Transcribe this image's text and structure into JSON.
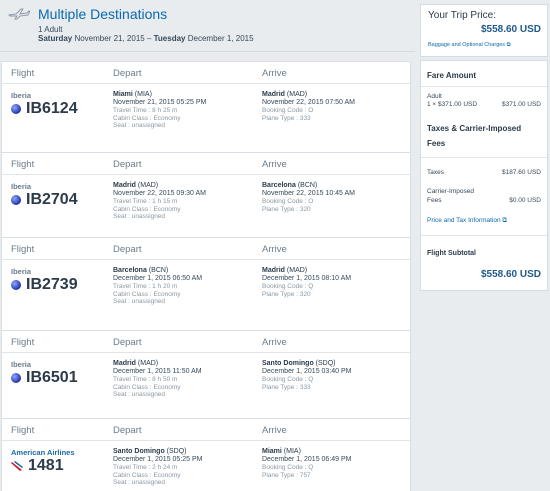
{
  "header": {
    "title": "Multiple Destinations",
    "adults": "1 Adult",
    "dates_start": "Saturday",
    "dates_mid": " November 21, 2015 – ",
    "dates_end": "Tuesday",
    "dates_tail": " December 1, 2015"
  },
  "columns": {
    "flight": "Flight",
    "depart": "Depart",
    "arrive": "Arrive"
  },
  "flights": [
    {
      "airline": "Iberia",
      "number": "IB6124",
      "logo": "iberia-globe-icon",
      "dep_city": "Miami",
      "dep_code": "(MIA)",
      "dep_time": "November 21, 2015 05:25 PM",
      "travel_time": "Travel Time : 8 h 25 m",
      "cabin": "Cabin Class : Economy",
      "seat": "Seat : unassigned",
      "arr_city": "Madrid",
      "arr_code": "(MAD)",
      "arr_time": "November 22, 2015 07:50 AM",
      "booking": "Booking Code : O",
      "plane": "Plane Type : 333"
    },
    {
      "airline": "Iberia",
      "number": "IB2704",
      "logo": "iberia-globe-icon",
      "dep_city": "Madrid",
      "dep_code": "(MAD)",
      "dep_time": "November 22, 2015 09:30 AM",
      "travel_time": "Travel Time : 1 h 15 m",
      "cabin": "Cabin Class : Economy",
      "seat": "Seat : unassigned",
      "arr_city": "Barcelona",
      "arr_code": "(BCN)",
      "arr_time": "November 22, 2015 10:45 AM",
      "booking": "Booking Code : O",
      "plane": "Plane Type : 320"
    },
    {
      "airline": "Iberia",
      "number": "IB2739",
      "logo": "iberia-globe-icon",
      "dep_city": "Barcelona",
      "dep_code": "(BCN)",
      "dep_time": "December 1, 2015 06:50 AM",
      "travel_time": "Travel Time : 1 h 20 m",
      "cabin": "Cabin Class : Economy",
      "seat": "Seat : unassigned",
      "arr_city": "Madrid",
      "arr_code": "(MAD)",
      "arr_time": "December 1, 2015 08:10 AM",
      "booking": "Booking Code : Q",
      "plane": "Plane Type : 320"
    },
    {
      "airline": "Iberia",
      "number": "IB6501",
      "logo": "iberia-globe-icon",
      "dep_city": "Madrid",
      "dep_code": "(MAD)",
      "dep_time": "December 1, 2015 11:50 AM",
      "travel_time": "Travel Time : 8 h 50 m",
      "cabin": "Cabin Class : Economy",
      "seat": "Seat : unassigned",
      "arr_city": "Santo Domingo",
      "arr_code": "(SDQ)",
      "arr_time": "December 1, 2015 03:40 PM",
      "booking": "Booking Code : Q",
      "plane": "Plane Type : 333"
    },
    {
      "airline": "American Airlines",
      "number": "1481",
      "logo": "american-airlines-icon",
      "dep_city": "Santo Domingo",
      "dep_code": "(SDQ)",
      "dep_time": "December 1, 2015 05:25 PM",
      "travel_time": "Travel Time : 2 h 24 m",
      "cabin": "Cabin Class : Economy",
      "seat": "Seat : unassigned",
      "arr_city": "Miami",
      "arr_code": "(MIA)",
      "arr_time": "December 1, 2015 06:49 PM",
      "booking": "Booking Code : Q",
      "plane": "Plane Type : 757"
    }
  ],
  "price": {
    "label": "Your Trip Price:",
    "amount": "$558.60 USD",
    "baggage_link": "Baggage and Optional Charges"
  },
  "fare": {
    "title": "Fare Amount",
    "adult_label": "Adult",
    "adult_calc": "1 × $371.00 USD",
    "adult_total": "$371.00 USD",
    "taxes_title_1": "Taxes & Carrier-Imposed",
    "taxes_title_2": "Fees",
    "taxes_label": "Taxes",
    "taxes_value": "$187.60 USD",
    "carrier_label_1": "Carrier-Imposed",
    "carrier_label_2": "Fees",
    "carrier_value": "$0.00 USD",
    "tax_info_link": "Price and Tax Information",
    "subtotal_label": "Flight Subtotal",
    "subtotal_value": "$558.60 USD"
  },
  "colors": {
    "link": "#0b69af",
    "price": "#1f5a8a",
    "bg": "#e8ecef"
  }
}
